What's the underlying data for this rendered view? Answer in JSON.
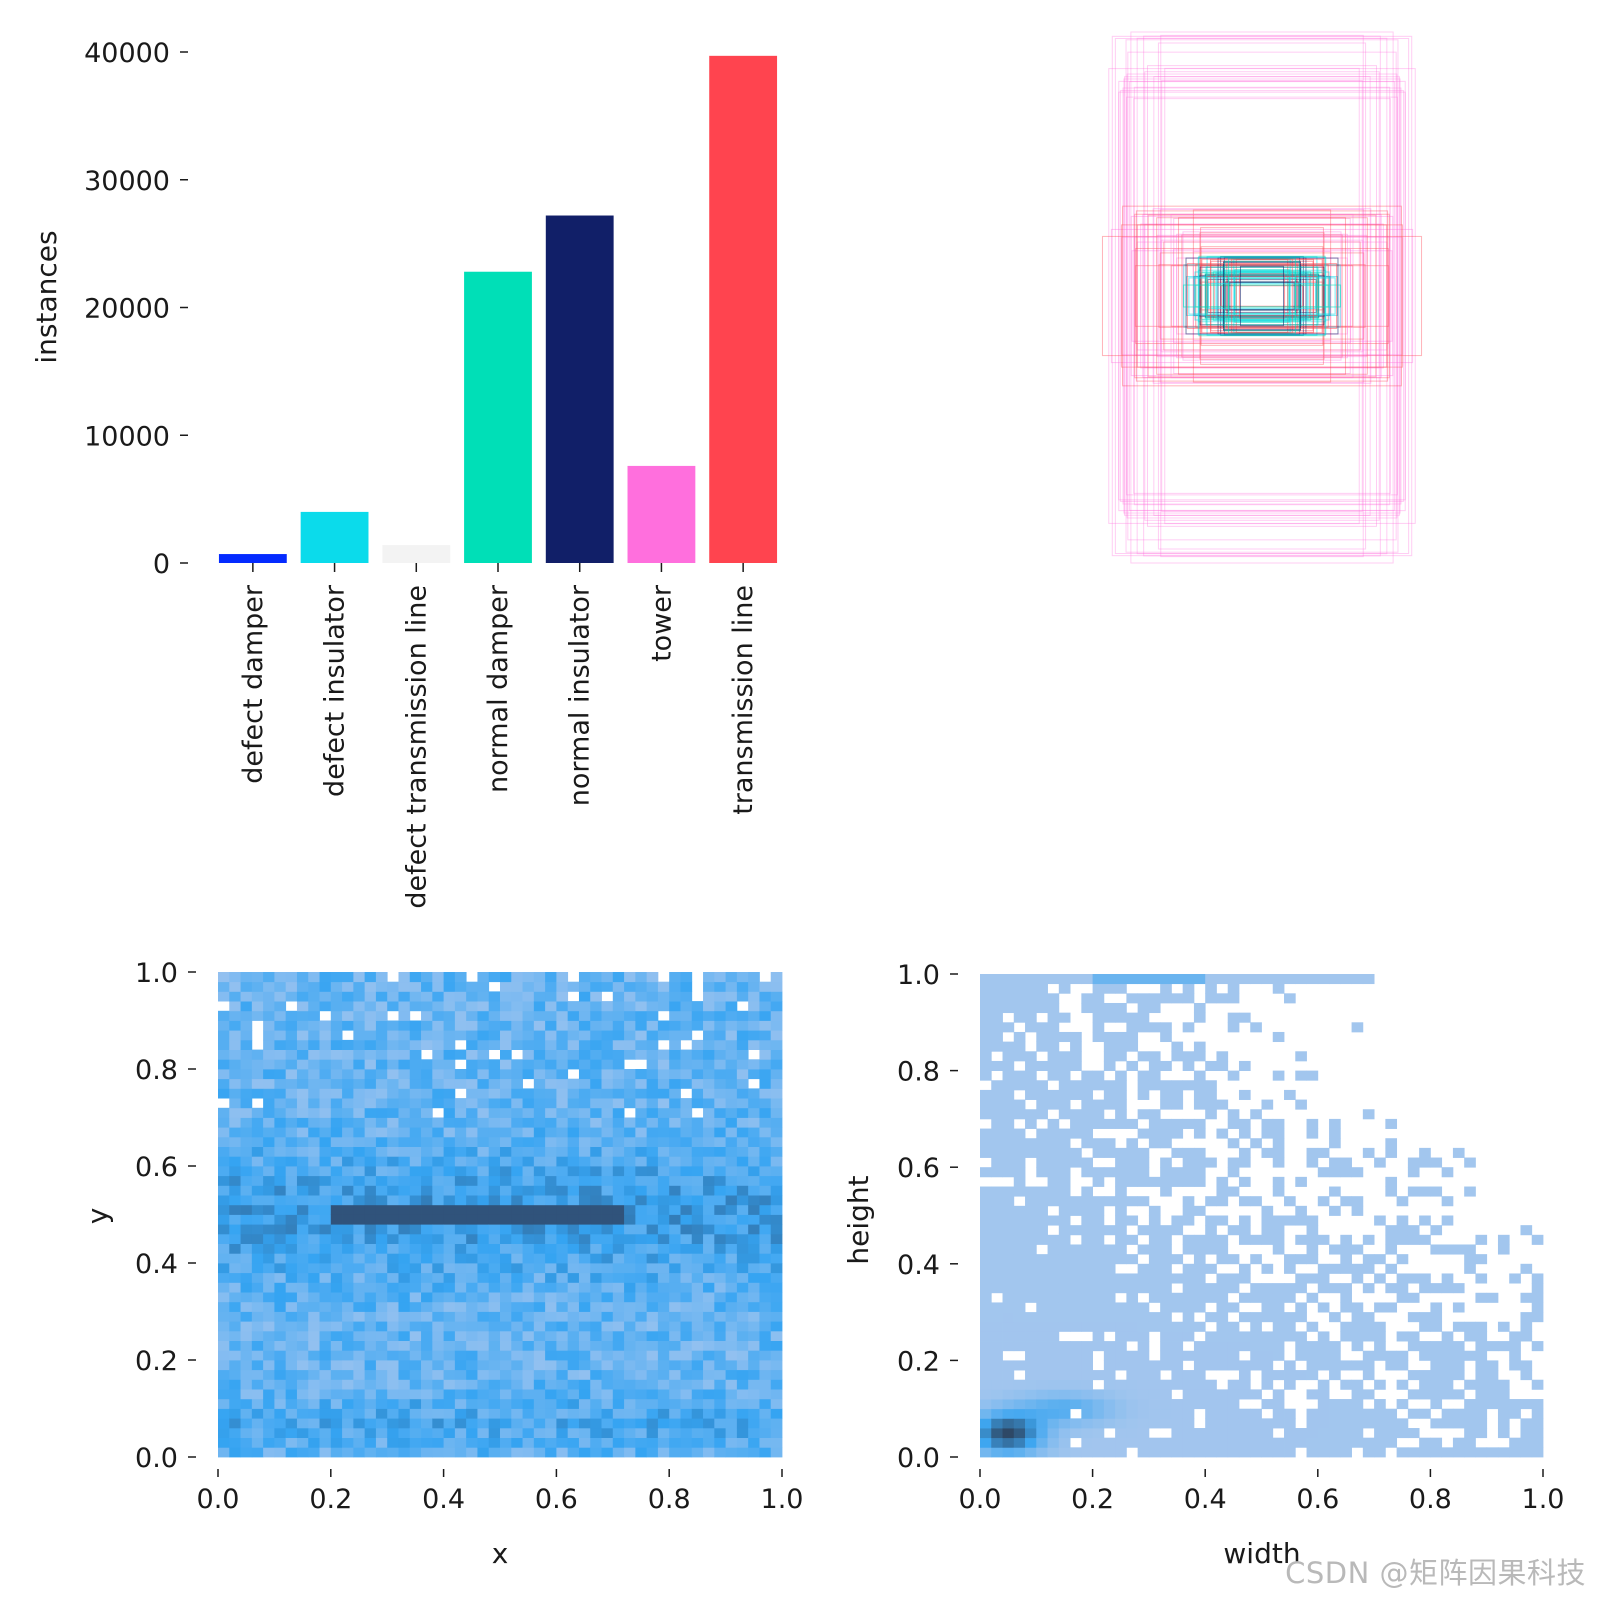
{
  "watermark": "CSDN @矩阵因果科技",
  "chart_data": [
    {
      "id": "instances_bar",
      "type": "bar",
      "ylabel": "instances",
      "xlabel": "",
      "categories": [
        "defect damper",
        "defect insulator",
        "defect transmission line",
        "normal damper",
        "normal insulator",
        "tower",
        "transmission line"
      ],
      "values": [
        700,
        4000,
        1400,
        22800,
        27200,
        7600,
        39700
      ],
      "colors": [
        "#042aff",
        "#0bdbeb",
        "#f3f3f3",
        "#00dfb7",
        "#111f68",
        "#ff6fdd",
        "#ff444f"
      ],
      "ylim": [
        0,
        40000
      ],
      "yticks": [
        0,
        10000,
        20000,
        30000,
        40000
      ],
      "grid": false,
      "legend": "none"
    },
    {
      "id": "box_overlay",
      "type": "other",
      "description_note": "",
      "colors": [
        "#ff6fdd",
        "#ff444f",
        "#111f68",
        "#00dfb7",
        "#0bdbeb"
      ]
    },
    {
      "id": "xy_hist",
      "type": "heatmap",
      "xlabel": "x",
      "ylabel": "y",
      "xlim": [
        0.0,
        1.0
      ],
      "ylim": [
        0.0,
        1.0
      ],
      "xticks": [
        "0.0",
        "0.2",
        "0.4",
        "0.6",
        "0.8",
        "1.0"
      ],
      "yticks": [
        "0.0",
        "0.2",
        "0.4",
        "0.6",
        "0.8",
        "1.0"
      ],
      "bins": 50,
      "peak_band_y": 0.5,
      "peak_band_x_range": [
        0.2,
        0.72
      ],
      "colormap": [
        "#a4c6f0",
        "#35a4f2",
        "#2f4a6e"
      ]
    },
    {
      "id": "wh_hist",
      "type": "heatmap",
      "xlabel": "width",
      "ylabel": "height",
      "xlim": [
        0.0,
        1.0
      ],
      "ylim": [
        0.0,
        1.0
      ],
      "xticks": [
        "0.0",
        "0.2",
        "0.4",
        "0.6",
        "0.8",
        "1.0"
      ],
      "yticks": [
        "0.0",
        "0.2",
        "0.4",
        "0.6",
        "0.8",
        "1.0"
      ],
      "bins": 50,
      "peak": {
        "width": 0.05,
        "height": 0.05
      },
      "colormap": [
        "#adc9ee",
        "#3ea6f0",
        "#2c3f58"
      ]
    }
  ]
}
